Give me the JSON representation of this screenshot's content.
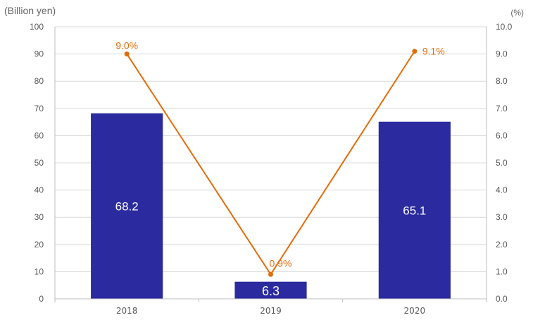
{
  "chart_data": {
    "type": "bar",
    "categories": [
      "2018",
      "2019",
      "2020"
    ],
    "title": "",
    "xlabel": "",
    "ylabel": "(Billion yen)",
    "ylim": [
      0,
      100
    ],
    "y_ticks": [
      "0",
      "10",
      "20",
      "30",
      "40",
      "50",
      "60",
      "70",
      "80",
      "90",
      "100"
    ],
    "y2label": "(%)",
    "y2lim": [
      0,
      10
    ],
    "y2_ticks": [
      "0.0",
      "1.0",
      "2.0",
      "3.0",
      "4.0",
      "5.0",
      "6.0",
      "7.0",
      "8.0",
      "9.0",
      "10.0"
    ],
    "grid": "horizontal",
    "legend": "none",
    "series": [
      {
        "type": "bar",
        "axis": "left",
        "values": [
          68.2,
          6.3,
          65.1
        ],
        "labels": [
          "68.2",
          "6.3",
          "65.1"
        ],
        "color": "#2b2a9e",
        "label_color": "#ffffff"
      },
      {
        "type": "line",
        "axis": "right",
        "values": [
          9.0,
          0.9,
          9.1
        ],
        "labels": [
          "9.0%",
          "0.9%",
          "9.1%"
        ],
        "color": "#e36c0a"
      }
    ]
  }
}
